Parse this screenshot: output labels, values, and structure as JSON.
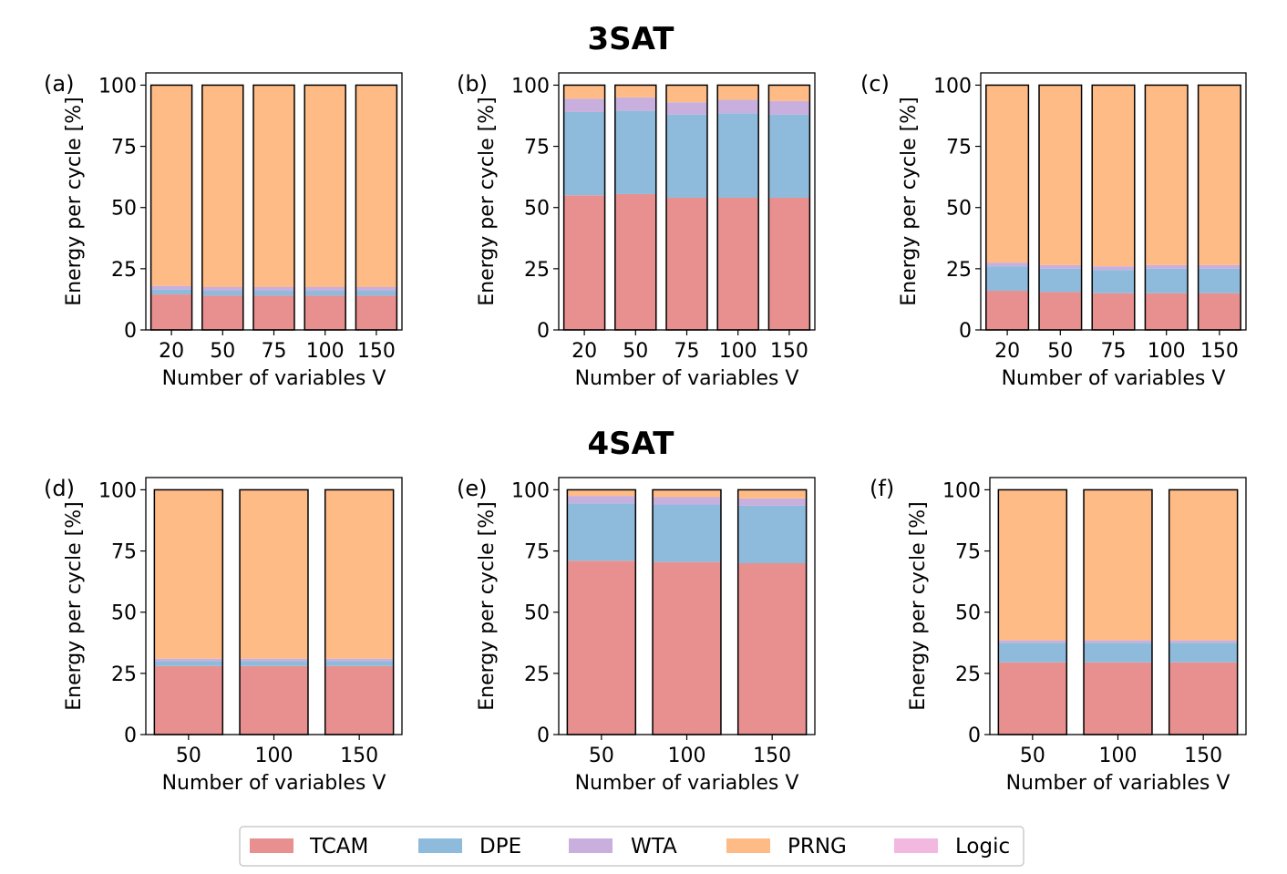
{
  "sections": [
    {
      "title": "3SAT"
    },
    {
      "title": "4SAT"
    }
  ],
  "colors": {
    "TCAM": "#e8908f",
    "DPE": "#8ebbdb",
    "WTA": "#c8afde",
    "PRNG": "#ffbb86",
    "Logic": "#f2b8e0"
  },
  "legend": {
    "items": [
      "TCAM",
      "DPE",
      "WTA",
      "PRNG",
      "Logic"
    ]
  },
  "chart_data": [
    {
      "panel": "(a)",
      "section": "3SAT",
      "type": "bar",
      "stacked": true,
      "xlabel": "Number of variables V",
      "ylabel": "Energy per cycle [%]",
      "ylim": [
        0,
        105
      ],
      "yticks": [
        0,
        25,
        50,
        75,
        100
      ],
      "categories": [
        "20",
        "50",
        "75",
        "100",
        "150"
      ],
      "series": [
        {
          "name": "TCAM",
          "values": [
            14.5,
            14,
            14,
            14,
            14
          ]
        },
        {
          "name": "DPE",
          "values": [
            2,
            2,
            2,
            2,
            2
          ]
        },
        {
          "name": "WTA",
          "values": [
            1.5,
            1.5,
            1.5,
            1.5,
            1.5
          ]
        },
        {
          "name": "PRNG",
          "values": [
            82,
            82.5,
            82.5,
            82.5,
            82.5
          ]
        }
      ]
    },
    {
      "panel": "(b)",
      "section": "3SAT",
      "type": "bar",
      "stacked": true,
      "xlabel": "Number of variables V",
      "ylabel": "Energy per cycle [%]",
      "ylim": [
        0,
        105
      ],
      "yticks": [
        0,
        25,
        50,
        75,
        100
      ],
      "categories": [
        "20",
        "50",
        "75",
        "100",
        "150"
      ],
      "series": [
        {
          "name": "TCAM",
          "values": [
            55,
            55.5,
            54,
            54,
            54
          ]
        },
        {
          "name": "DPE",
          "values": [
            34,
            34,
            34,
            34.5,
            34
          ]
        },
        {
          "name": "WTA",
          "values": [
            5.5,
            5.5,
            5,
            5.5,
            5.5
          ]
        },
        {
          "name": "PRNG",
          "values": [
            5.5,
            5,
            7,
            6,
            6.5
          ]
        }
      ]
    },
    {
      "panel": "(c)",
      "section": "3SAT",
      "type": "bar",
      "stacked": true,
      "xlabel": "Number of variables V",
      "ylabel": "Energy per cycle [%]",
      "ylim": [
        0,
        105
      ],
      "yticks": [
        0,
        25,
        50,
        75,
        100
      ],
      "categories": [
        "20",
        "50",
        "75",
        "100",
        "150"
      ],
      "series": [
        {
          "name": "TCAM",
          "values": [
            16,
            15.5,
            15,
            15,
            15
          ]
        },
        {
          "name": "DPE",
          "values": [
            10,
            9.5,
            9.5,
            10,
            10
          ]
        },
        {
          "name": "WTA",
          "values": [
            1.5,
            1.5,
            1.5,
            1.5,
            1.5
          ]
        },
        {
          "name": "PRNG",
          "values": [
            72.5,
            73.5,
            74,
            73.5,
            73.5
          ]
        }
      ]
    },
    {
      "panel": "(d)",
      "section": "4SAT",
      "type": "bar",
      "stacked": true,
      "xlabel": "Number of variables V",
      "ylabel": "Energy per cycle [%]",
      "ylim": [
        0,
        105
      ],
      "yticks": [
        0,
        25,
        50,
        75,
        100
      ],
      "categories": [
        "50",
        "100",
        "150"
      ],
      "series": [
        {
          "name": "TCAM",
          "values": [
            28,
            28,
            28
          ]
        },
        {
          "name": "DPE",
          "values": [
            2,
            2,
            2
          ]
        },
        {
          "name": "WTA",
          "values": [
            1,
            1,
            1
          ]
        },
        {
          "name": "PRNG",
          "values": [
            69,
            69,
            69
          ]
        }
      ]
    },
    {
      "panel": "(e)",
      "section": "4SAT",
      "type": "bar",
      "stacked": true,
      "xlabel": "Number of variables V",
      "ylabel": "Energy per cycle [%]",
      "ylim": [
        0,
        105
      ],
      "yticks": [
        0,
        25,
        50,
        75,
        100
      ],
      "categories": [
        "50",
        "100",
        "150"
      ],
      "series": [
        {
          "name": "TCAM",
          "values": [
            71,
            70.5,
            70
          ]
        },
        {
          "name": "DPE",
          "values": [
            23.5,
            23.5,
            23.5
          ]
        },
        {
          "name": "WTA",
          "values": [
            3,
            3,
            3
          ]
        },
        {
          "name": "PRNG",
          "values": [
            2.5,
            3,
            3.5
          ]
        }
      ]
    },
    {
      "panel": "(f)",
      "section": "4SAT",
      "type": "bar",
      "stacked": true,
      "xlabel": "Number of variables V",
      "ylabel": "Energy per cycle [%]",
      "ylim": [
        0,
        105
      ],
      "yticks": [
        0,
        25,
        50,
        75,
        100
      ],
      "categories": [
        "50",
        "100",
        "150"
      ],
      "series": [
        {
          "name": "TCAM",
          "values": [
            29.5,
            29.5,
            29.5
          ]
        },
        {
          "name": "DPE",
          "values": [
            8,
            8,
            8
          ]
        },
        {
          "name": "WTA",
          "values": [
            1,
            1,
            1
          ]
        },
        {
          "name": "PRNG",
          "values": [
            61.5,
            61.5,
            61.5
          ]
        }
      ]
    }
  ]
}
